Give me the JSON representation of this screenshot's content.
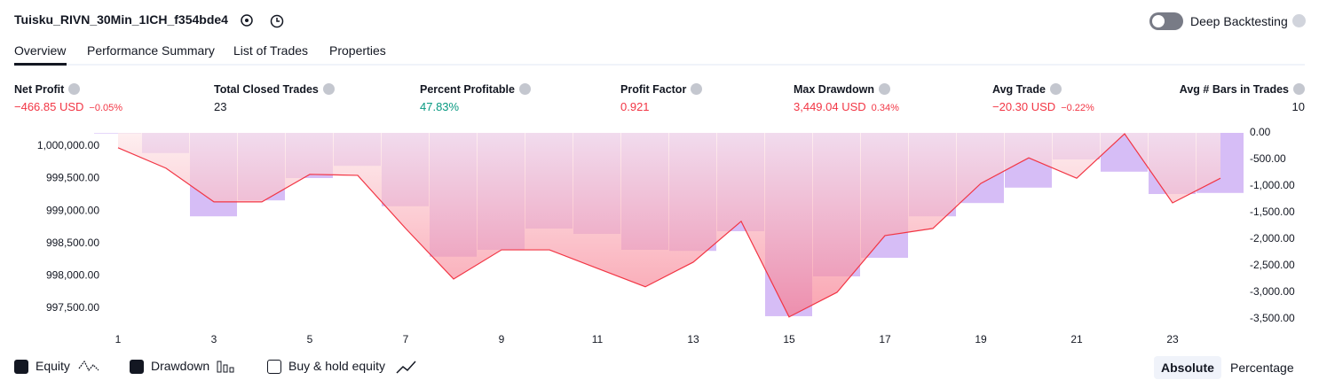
{
  "header": {
    "title": "Tuisku_RIVN_30Min_1ICH_f354bde4",
    "deep_backtesting": "Deep Backtesting"
  },
  "tabs": [
    "Overview",
    "Performance Summary",
    "List of Trades",
    "Properties"
  ],
  "metrics": [
    {
      "label": "Net Profit",
      "value": "−466.85 USD",
      "sub": "−0.05%"
    },
    {
      "label": "Total Closed Trades",
      "value": "23"
    },
    {
      "label": "Percent Profitable",
      "value": "47.83%"
    },
    {
      "label": "Profit Factor",
      "value": "0.921"
    },
    {
      "label": "Max Drawdown",
      "value": "3,449.04 USD",
      "sub": "0.34%"
    },
    {
      "label": "Avg Trade",
      "value": "−20.30 USD",
      "sub": "−0.22%"
    },
    {
      "label": "Avg # Bars in Trades",
      "value": "10"
    }
  ],
  "chart_data": {
    "type": "combo",
    "x": [
      1,
      2,
      3,
      4,
      5,
      6,
      7,
      8,
      9,
      10,
      11,
      12,
      13,
      14,
      15,
      16,
      17,
      18,
      19,
      20,
      21,
      22,
      23,
      24
    ],
    "xlim": [
      0.5,
      24.5
    ],
    "xticks": [
      1,
      3,
      5,
      7,
      9,
      11,
      13,
      15,
      17,
      19,
      21,
      23
    ],
    "ylim": [
      997225,
      1000205
    ],
    "yticks": [
      {
        "value": 1000000,
        "label": "1,000,000.00"
      },
      {
        "value": 999500,
        "label": "999,500.00"
      },
      {
        "value": 999000,
        "label": "999,000.00"
      },
      {
        "value": 998500,
        "label": "998,500.00"
      },
      {
        "value": 998000,
        "label": "998,000.00"
      },
      {
        "value": 997500,
        "label": "997,500.00"
      }
    ],
    "y2lim": [
      -3633,
      0
    ],
    "y2ticks": [
      {
        "value": 0,
        "label": "0.00"
      },
      {
        "value": -500,
        "label": "-500.00"
      },
      {
        "value": -1000,
        "label": "-1,000.00"
      },
      {
        "value": -1500,
        "label": "-1,500.00"
      },
      {
        "value": -2000,
        "label": "-2,000.00"
      },
      {
        "value": -2500,
        "label": "-2,500.00"
      },
      {
        "value": -3000,
        "label": "-3,000.00"
      },
      {
        "value": -3500,
        "label": "-3,500.00"
      }
    ],
    "series": [
      {
        "name": "Equity",
        "type": "line",
        "color": "#f23645",
        "values": [
          999975,
          999660,
          999140,
          999140,
          999565,
          999550,
          998730,
          997950,
          998400,
          998400,
          998115,
          997830,
          998210,
          998840,
          997365,
          997745,
          998620,
          998730,
          999425,
          999820,
          999505,
          1000190,
          999125,
          999505
        ]
      },
      {
        "name": "Drawdown",
        "type": "bar",
        "axis": "y2",
        "color": "#cfb1f5",
        "values": [
          -10,
          -380,
          -1570,
          -1270,
          -850,
          -620,
          -1380,
          -2330,
          -2200,
          -1800,
          -1900,
          -2200,
          -2220,
          -1850,
          -3449.04,
          -2700,
          -2350,
          -1570,
          -1320,
          -1030,
          -500,
          -730,
          -1150,
          -1130
        ]
      }
    ]
  },
  "legend_extra": "Buy & hold equity",
  "buttons": [
    "Absolute",
    "Percentage"
  ]
}
